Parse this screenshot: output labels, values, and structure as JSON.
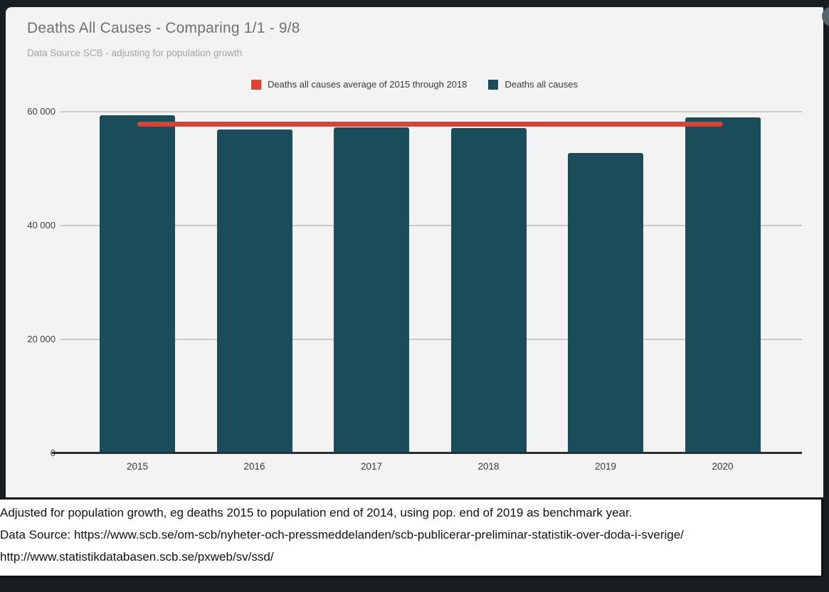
{
  "header": {
    "title": "Deaths All Causes - Comparing 1/1 - 9/8",
    "subtitle": "Data Source SCB - adjusting for population growth"
  },
  "legend": {
    "items": [
      {
        "label": "Deaths all causes average of 2015 through 2018",
        "color": "#e2402f",
        "series_type": "line"
      },
      {
        "label": "Deaths all causes",
        "color": "#1a4d59",
        "series_type": "bar"
      }
    ]
  },
  "chart_data": {
    "type": "bar",
    "title": "Deaths All Causes - Comparing 1/1 - 9/8",
    "subtitle": "Data Source SCB - adjusting for population growth",
    "categories": [
      "2015",
      "2016",
      "2017",
      "2018",
      "2019",
      "2020"
    ],
    "series": [
      {
        "name": "Deaths all causes",
        "type": "bar",
        "color": "#1a4d59",
        "values": [
          59400,
          56900,
          57250,
          57100,
          52800,
          59000
        ]
      },
      {
        "name": "Deaths all causes average of 2015 through 2018",
        "type": "line",
        "color": "#e2402f",
        "values": [
          57800,
          57800,
          57800,
          57800,
          57800,
          57800
        ]
      }
    ],
    "xlabel": "",
    "ylabel": "",
    "ylim": [
      0,
      60000
    ],
    "yticks": [
      0,
      20000,
      40000,
      60000
    ],
    "ytick_labels": [
      "0",
      "20 000",
      "40 000",
      "60 000"
    ],
    "grid": true,
    "legend_position": "top"
  },
  "footnote": {
    "lines": [
      "Adjusted for population growth, eg deaths 2015 to population end of 2014, using pop. end of 2019 as benchmark year.",
      "Data Source: https://www.scb.se/om-scb/nyheter-och-pressmeddelanden/scb-publicerar-preliminar-statistik-over-doda-i-sverige/",
      "http://www.statistikdatabasen.scb.se/pxweb/sv/ssd/"
    ]
  },
  "colors": {
    "bar": "#1a4d59",
    "average_line": "#e2402f",
    "card_background": "#f2f3f2",
    "frame_background": "#171d20",
    "gridline": "#c9c9c9",
    "axis": "#2e2e2e"
  }
}
